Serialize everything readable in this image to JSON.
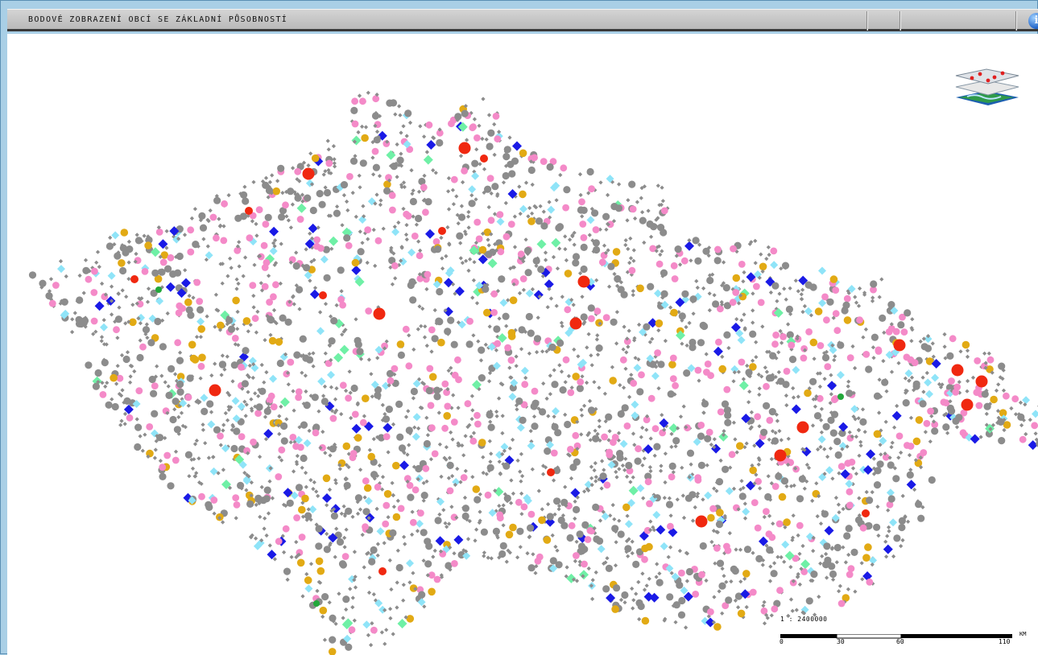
{
  "window": {
    "title": "BODOVÉ ZOBRAZENÍ OBCÍ SE ZÁKLADNÍ PŮSOBNOSTÍ",
    "info_icon": "info-icon"
  },
  "map": {
    "layers_icon": "map-layers-icon",
    "symbol_colors": {
      "gray": "#8c8c8c",
      "pink": "#f48ac8",
      "light_blue": "#8fe4f8",
      "gold": "#e2aa14",
      "blue": "#1a1ae6",
      "red": "#f02810",
      "green": "#6ff0a6",
      "dark_green": "#22a83a"
    },
    "scale": {
      "ratio": "1 : 2400000",
      "unit": "KM",
      "ticks": [
        "0",
        "30",
        "60",
        "110"
      ]
    }
  }
}
